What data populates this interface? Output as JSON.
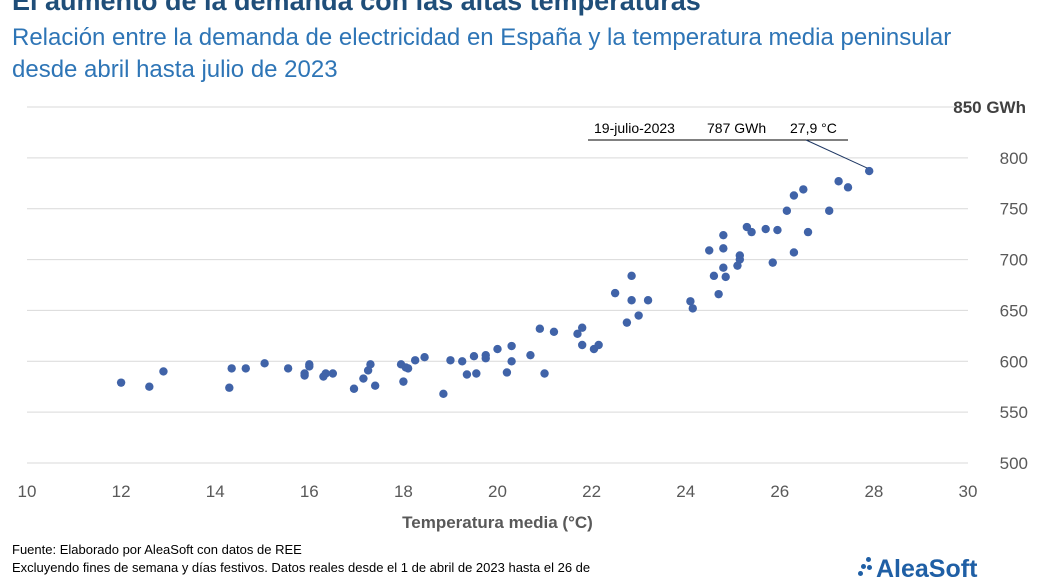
{
  "title": "El aumento de la demanda con las altas temperaturas",
  "subtitle": "Relación entre la demanda de electricidad en España y la temperatura media peninsular desde abril hasta julio de 2023",
  "footer": {
    "source": "Fuente: Elaborado por AleaSoft con datos de REE",
    "note": "Excluyendo fines de semana y días festivos. Datos reales desde el 1 de abril de 2023 hasta el 26 de"
  },
  "logo": "AleaSoft",
  "chart_data": {
    "type": "scatter",
    "xlabel": "Temperatura media (°C)",
    "ylabel_unit": "850 GWh",
    "xlim": [
      10,
      30
    ],
    "ylim": [
      500,
      850
    ],
    "xticks": [
      10,
      12,
      14,
      16,
      18,
      20,
      22,
      24,
      26,
      28,
      30
    ],
    "yticks": [
      500,
      550,
      600,
      650,
      700,
      750,
      800
    ],
    "grid": "horizontal",
    "point_color": "#4063a8",
    "annotation": {
      "date": "19-julio-2023",
      "value": "787 GWh",
      "temp": "27,9 °C",
      "x": 27.9,
      "y": 787
    },
    "points": [
      [
        12.0,
        579
      ],
      [
        12.6,
        575
      ],
      [
        12.9,
        590
      ],
      [
        14.3,
        574
      ],
      [
        14.35,
        593
      ],
      [
        14.65,
        593
      ],
      [
        15.05,
        598
      ],
      [
        15.55,
        593
      ],
      [
        15.9,
        586
      ],
      [
        15.9,
        588
      ],
      [
        16.0,
        597
      ],
      [
        16.0,
        595
      ],
      [
        16.3,
        585
      ],
      [
        16.35,
        588
      ],
      [
        16.5,
        588
      ],
      [
        16.95,
        573
      ],
      [
        17.15,
        583
      ],
      [
        17.25,
        591
      ],
      [
        17.3,
        597
      ],
      [
        17.4,
        576
      ],
      [
        17.95,
        597
      ],
      [
        18.0,
        580
      ],
      [
        18.05,
        594
      ],
      [
        18.1,
        593
      ],
      [
        18.25,
        601
      ],
      [
        18.45,
        604
      ],
      [
        18.85,
        568
      ],
      [
        19.0,
        601
      ],
      [
        19.25,
        600
      ],
      [
        19.35,
        587
      ],
      [
        19.55,
        588
      ],
      [
        19.5,
        605
      ],
      [
        19.75,
        606
      ],
      [
        19.75,
        603
      ],
      [
        20.0,
        612
      ],
      [
        20.2,
        589
      ],
      [
        20.3,
        600
      ],
      [
        20.3,
        615
      ],
      [
        20.7,
        606
      ],
      [
        20.9,
        632
      ],
      [
        21.0,
        588
      ],
      [
        21.2,
        629
      ],
      [
        21.7,
        627
      ],
      [
        21.8,
        633
      ],
      [
        21.8,
        616
      ],
      [
        22.05,
        612
      ],
      [
        22.15,
        616
      ],
      [
        22.5,
        667
      ],
      [
        22.75,
        638
      ],
      [
        22.85,
        660
      ],
      [
        22.85,
        684
      ],
      [
        23.0,
        645
      ],
      [
        23.2,
        660
      ],
      [
        24.1,
        659
      ],
      [
        24.15,
        652
      ],
      [
        24.5,
        709
      ],
      [
        24.6,
        684
      ],
      [
        24.7,
        666
      ],
      [
        24.8,
        724
      ],
      [
        24.8,
        711
      ],
      [
        24.8,
        692
      ],
      [
        24.85,
        683
      ],
      [
        25.1,
        694
      ],
      [
        25.15,
        700
      ],
      [
        25.15,
        704
      ],
      [
        25.3,
        732
      ],
      [
        25.4,
        727
      ],
      [
        25.7,
        730
      ],
      [
        25.85,
        697
      ],
      [
        25.95,
        729
      ],
      [
        26.15,
        748
      ],
      [
        26.3,
        707
      ],
      [
        26.3,
        763
      ],
      [
        26.5,
        769
      ],
      [
        26.6,
        727
      ],
      [
        27.05,
        748
      ],
      [
        27.25,
        777
      ],
      [
        27.45,
        771
      ],
      [
        27.9,
        787
      ]
    ]
  }
}
